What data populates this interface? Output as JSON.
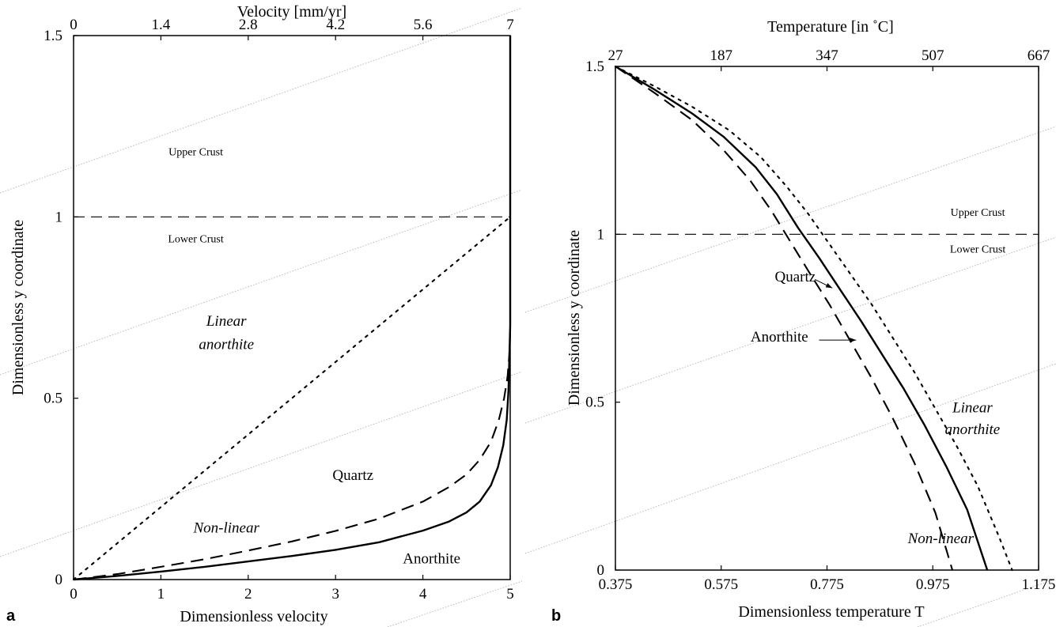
{
  "chart_data": [
    {
      "type": "line",
      "panel_label": "a",
      "xlabel": "Dimensionless  velocity",
      "ylabel": "Dimensionless y coordinate",
      "top_xlabel": "Velocity [mm/yr]",
      "xlim": [
        0,
        5
      ],
      "ylim": [
        0,
        1.5
      ],
      "x_ticks": [
        "0",
        "1",
        "2",
        "3",
        "4",
        "5"
      ],
      "top_ticks": [
        "0",
        "1.4",
        "2.8",
        "4.2",
        "5.6",
        "7"
      ],
      "y_ticks": [
        "0",
        "0.5",
        "1",
        "1.5"
      ],
      "boundary_y": 1.0,
      "region_labels": [
        {
          "text": "Upper Crust",
          "x": 1.4,
          "y": 1.17
        },
        {
          "text": "Lower Crust",
          "x": 1.4,
          "y": 0.93
        }
      ],
      "annotations": [
        {
          "text": "Linear",
          "italic": true,
          "x": 1.75,
          "y": 0.7
        },
        {
          "text": "anorthite",
          "italic": true,
          "x": 1.75,
          "y": 0.636
        },
        {
          "text": "Quartz",
          "italic": false,
          "x": 3.2,
          "y": 0.275
        },
        {
          "text": "Non-linear",
          "italic": true,
          "x": 1.75,
          "y": 0.13
        },
        {
          "text": "Anorthite",
          "italic": false,
          "x": 4.1,
          "y": 0.045
        }
      ],
      "series": [
        {
          "style": "solid",
          "x": [
            0,
            0.5,
            1,
            1.5,
            2,
            2.5,
            3,
            3.5,
            4,
            4.3,
            4.5,
            4.65,
            4.78,
            4.86,
            4.92,
            4.96,
            4.98,
            5.0,
            5.0
          ],
          "y": [
            0,
            0.01,
            0.022,
            0.035,
            0.05,
            0.065,
            0.082,
            0.103,
            0.135,
            0.16,
            0.185,
            0.215,
            0.26,
            0.31,
            0.37,
            0.44,
            0.52,
            0.7,
            1.5
          ]
        },
        {
          "style": "dashed",
          "x": [
            0,
            0.5,
            1,
            1.5,
            2,
            2.5,
            3,
            3.5,
            4,
            4.3,
            4.5,
            4.65,
            4.78,
            4.87,
            4.93,
            4.97,
            4.99,
            5.0
          ],
          "y": [
            0,
            0.015,
            0.035,
            0.056,
            0.08,
            0.105,
            0.134,
            0.168,
            0.215,
            0.255,
            0.29,
            0.33,
            0.38,
            0.44,
            0.5,
            0.56,
            0.62,
            0.68
          ]
        },
        {
          "style": "dotted",
          "x": [
            0,
            5
          ],
          "y": [
            0,
            1.0
          ]
        }
      ]
    },
    {
      "type": "line",
      "panel_label": "b",
      "xlabel": "Dimensionless temperature T",
      "ylabel": "Dimensionless y coordinate",
      "top_xlabel": "Temperature [in ˚C]",
      "xlim": [
        0.375,
        1.175
      ],
      "ylim": [
        0,
        1.5
      ],
      "x_ticks": [
        "0.375",
        "0.575",
        "0.775",
        "0.975",
        "1.175"
      ],
      "top_ticks": [
        "27",
        "187",
        "347",
        "507",
        "667"
      ],
      "y_ticks": [
        "0",
        "0.5",
        "1",
        "1.5"
      ],
      "boundary_y": 1.0,
      "region_labels": [
        {
          "text": "Upper Crust",
          "x": 1.06,
          "y": 1.055
        },
        {
          "text": "Lower Crust",
          "x": 1.06,
          "y": 0.945
        }
      ],
      "annotations": [
        {
          "text": "Quartz",
          "italic": false,
          "x": 0.715,
          "y": 0.86
        },
        {
          "text": "Anorthite",
          "italic": false,
          "x": 0.685,
          "y": 0.68
        },
        {
          "text": "Linear",
          "italic": true,
          "x": 1.05,
          "y": 0.47
        },
        {
          "text": "anorthite",
          "italic": true,
          "x": 1.05,
          "y": 0.405
        },
        {
          "text": "Non-linear",
          "italic": true,
          "x": 0.99,
          "y": 0.08
        }
      ],
      "arrows": [
        {
          "from": [
            0.753,
            0.865
          ],
          "to": [
            0.785,
            0.84
          ]
        },
        {
          "from": [
            0.76,
            0.685
          ],
          "to": [
            0.83,
            0.685
          ]
        }
      ],
      "series": [
        {
          "style": "solid",
          "x": [
            0.375,
            0.45,
            0.52,
            0.58,
            0.64,
            0.68,
            0.72,
            0.76,
            0.8,
            0.84,
            0.88,
            0.92,
            0.96,
            1.0,
            1.04,
            1.078
          ],
          "y": [
            1.5,
            1.43,
            1.36,
            1.29,
            1.2,
            1.12,
            1.02,
            0.93,
            0.835,
            0.74,
            0.64,
            0.54,
            0.43,
            0.31,
            0.18,
            0.0
          ]
        },
        {
          "style": "dashed",
          "x": [
            0.375,
            0.45,
            0.52,
            0.58,
            0.63,
            0.67,
            0.705,
            0.74,
            0.78,
            0.82,
            0.86,
            0.9,
            0.94,
            0.98,
            1.012
          ],
          "y": [
            1.5,
            1.42,
            1.34,
            1.25,
            1.16,
            1.07,
            0.98,
            0.89,
            0.79,
            0.68,
            0.57,
            0.45,
            0.32,
            0.17,
            0.0
          ]
        },
        {
          "style": "dotted",
          "x": [
            0.375,
            0.45,
            0.52,
            0.59,
            0.65,
            0.7,
            0.74,
            0.78,
            0.82,
            0.86,
            0.9,
            0.94,
            0.98,
            1.02,
            1.06,
            1.1,
            1.125
          ],
          "y": [
            1.5,
            1.44,
            1.38,
            1.31,
            1.23,
            1.14,
            1.06,
            0.97,
            0.88,
            0.79,
            0.69,
            0.59,
            0.48,
            0.37,
            0.25,
            0.1,
            0.0
          ]
        }
      ]
    }
  ]
}
